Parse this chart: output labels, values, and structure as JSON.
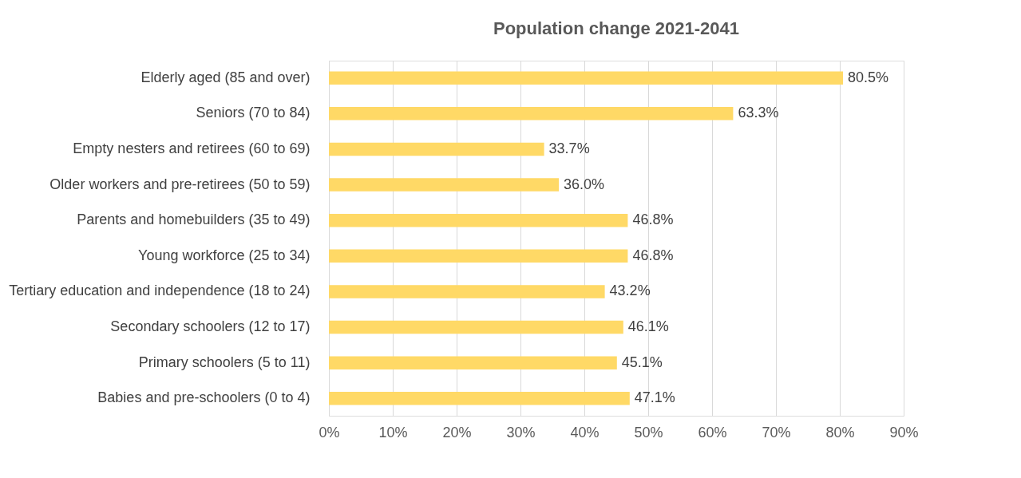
{
  "chart_data": {
    "type": "bar",
    "orientation": "horizontal",
    "title": "Population change 2021-2041",
    "categories": [
      "Elderly aged (85 and over)",
      "Seniors (70 to 84)",
      "Empty nesters and retirees (60 to 69)",
      "Older workers and pre-retirees (50 to 59)",
      "Parents and homebuilders (35 to 49)",
      "Young workforce (25 to 34)",
      "Tertiary education and independence (18 to 24)",
      "Secondary schoolers (12 to 17)",
      "Primary schoolers (5 to 11)",
      "Babies and pre-schoolers (0 to 4)"
    ],
    "values": [
      80.5,
      63.3,
      33.7,
      36.0,
      46.8,
      46.8,
      43.2,
      46.1,
      45.1,
      47.1
    ],
    "value_labels": [
      "80.5%",
      "63.3%",
      "33.7%",
      "36.0%",
      "46.8%",
      "46.8%",
      "43.2%",
      "46.1%",
      "45.1%",
      "47.1%"
    ],
    "color": "#ffd966",
    "xlim": [
      0,
      90
    ],
    "xticks": [
      {
        "value": 0,
        "label": "0%"
      },
      {
        "value": 10,
        "label": "10%"
      },
      {
        "value": 20,
        "label": "20%"
      },
      {
        "value": 30,
        "label": "30%"
      },
      {
        "value": 40,
        "label": "40%"
      },
      {
        "value": 50,
        "label": "50%"
      },
      {
        "value": 60,
        "label": "60%"
      },
      {
        "value": 70,
        "label": "70%"
      },
      {
        "value": 80,
        "label": "80%"
      },
      {
        "value": 90,
        "label": "90%"
      }
    ],
    "grid": "x"
  }
}
